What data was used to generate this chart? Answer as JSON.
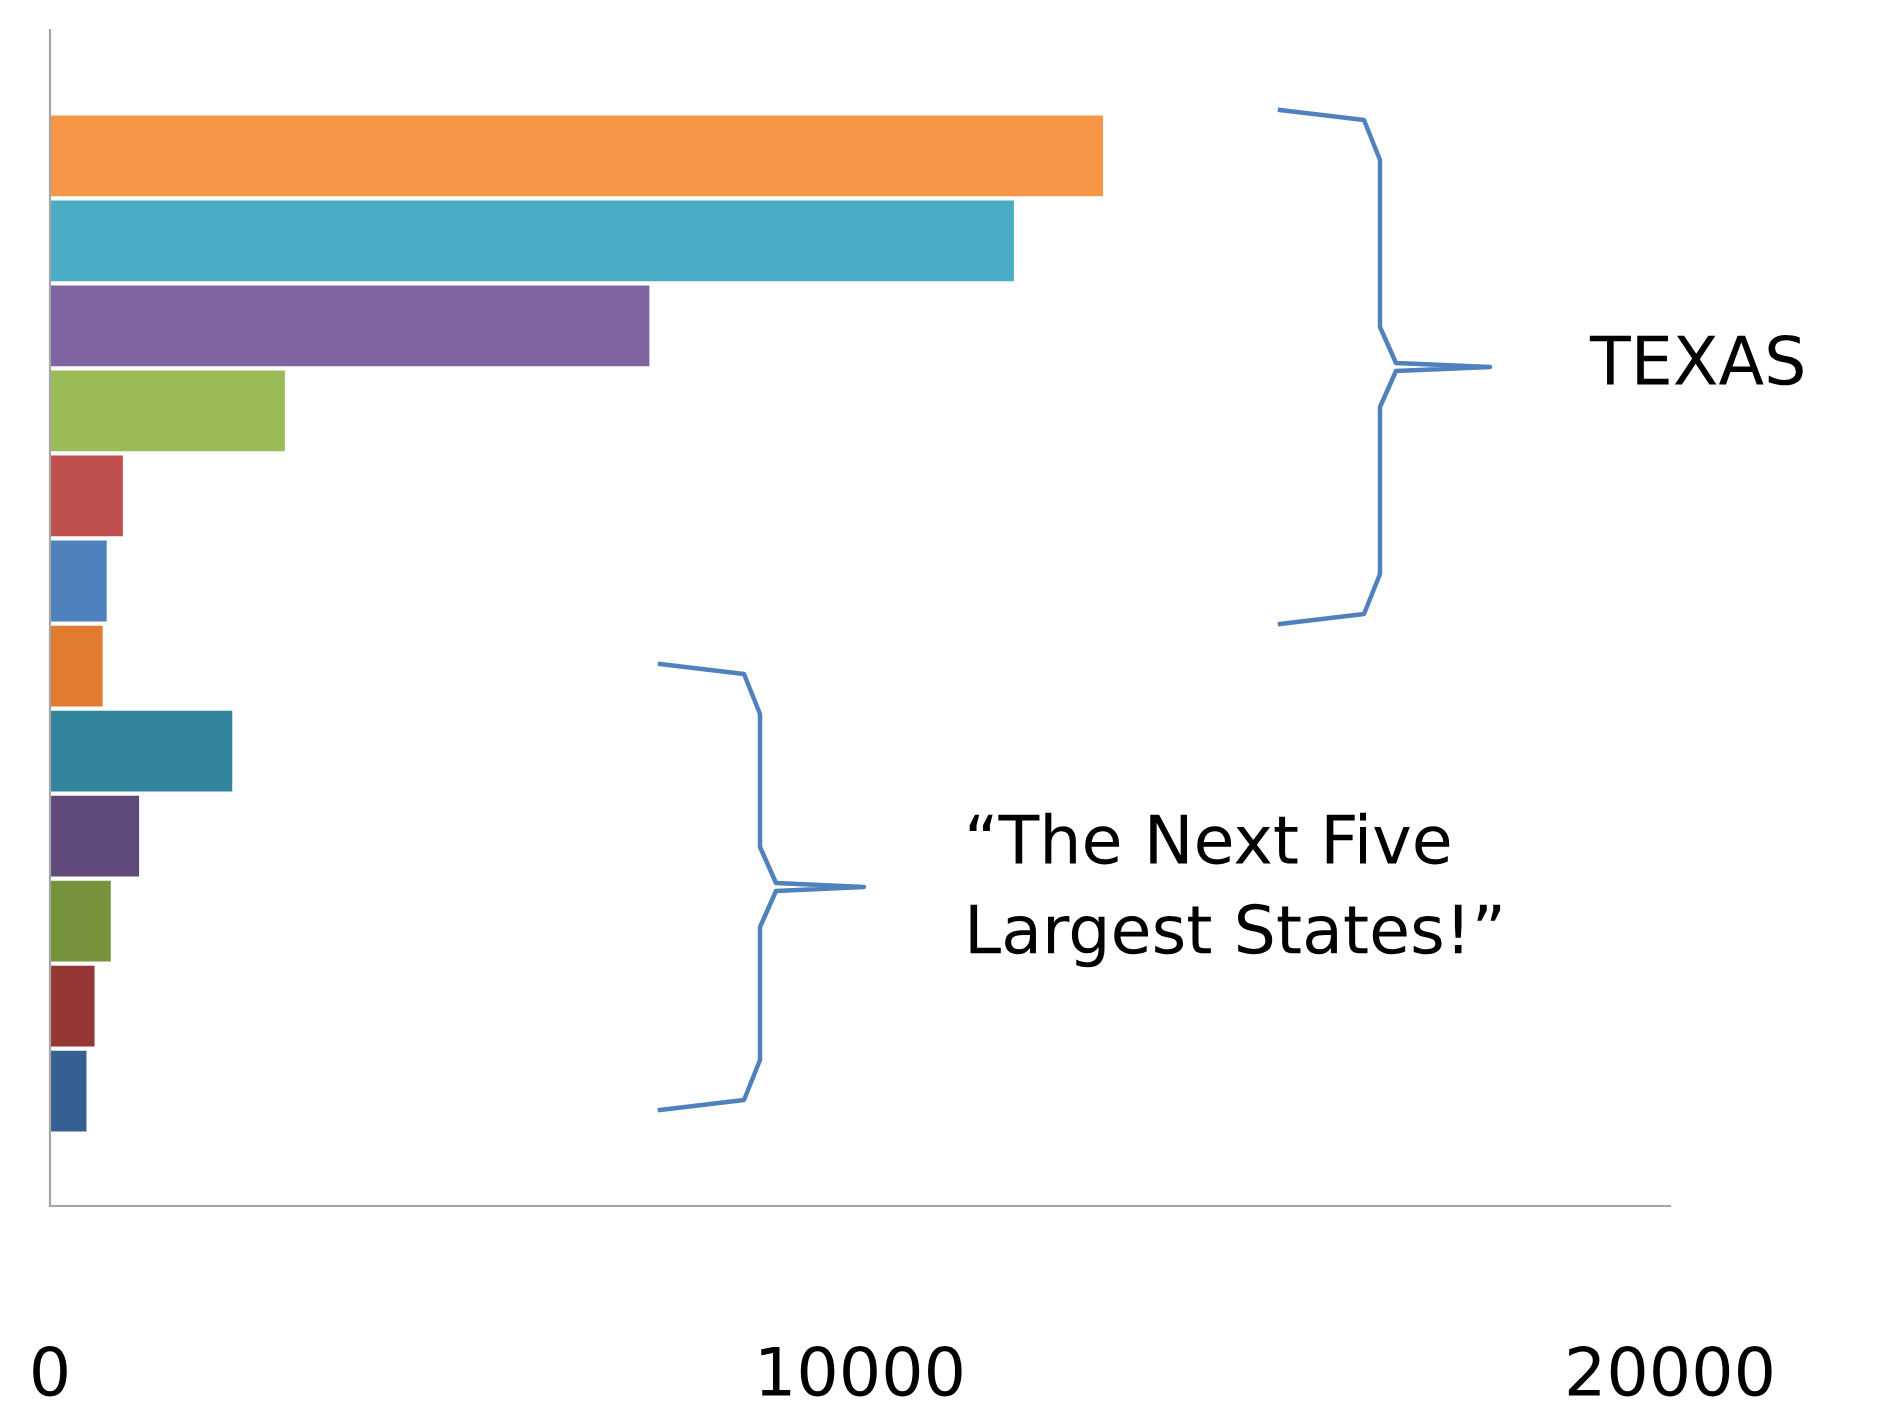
{
  "chart_data": {
    "type": "bar",
    "orientation": "horizontal",
    "categories": [
      null,
      null,
      null,
      null,
      null,
      null,
      null,
      null,
      null,
      null,
      null,
      null
    ],
    "values": [
      13000,
      11900,
      7400,
      2900,
      900,
      700,
      650,
      2250,
      1100,
      750,
      550,
      450
    ],
    "colors": [
      "#f79646",
      "#4bacc6",
      "#8064a2",
      "#9bbb59",
      "#c0504d",
      "#4f81bd",
      "#e07b2f",
      "#31849b",
      "#604a7b",
      "#76923c",
      "#953735",
      "#376092"
    ],
    "xlim": [
      0,
      20000
    ],
    "xticks": [
      0,
      10000,
      20000
    ],
    "tick_labels": "x",
    "grid": false,
    "annotations": [
      "TEXAS",
      "“The Next Five\nLargest States!”"
    ]
  }
}
